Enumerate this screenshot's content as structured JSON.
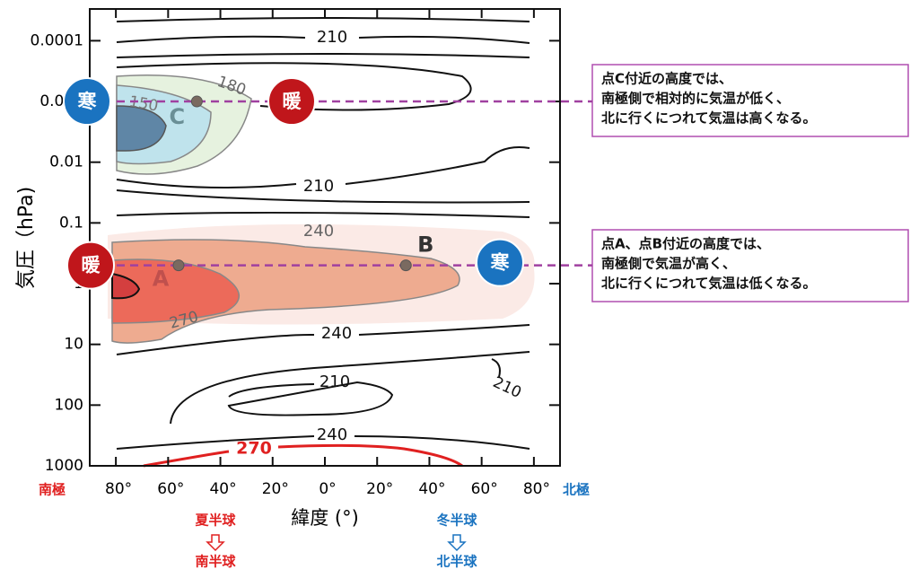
{
  "chart_data": {
    "type": "contour",
    "xlabel": "緯度 (°)",
    "ylabel": "気圧（hPa)",
    "xlim": [
      -90,
      90
    ],
    "ylim": [
      1000,
      3e-05
    ],
    "log_y": true,
    "xticks": [
      {
        "value": -80,
        "label": "80°"
      },
      {
        "value": -60,
        "label": "60°"
      },
      {
        "value": -40,
        "label": "40°"
      },
      {
        "value": -20,
        "label": "20°"
      },
      {
        "value": 0,
        "label": "0°"
      },
      {
        "value": 20,
        "label": "20°"
      },
      {
        "value": 40,
        "label": "40°"
      },
      {
        "value": 60,
        "label": "60°"
      },
      {
        "value": 80,
        "label": "80°"
      }
    ],
    "yticks": [
      0.0001,
      0.001,
      0.01,
      0.1,
      1,
      10,
      100,
      1000
    ],
    "x_end_labels": [
      {
        "label": "南極",
        "color": "#e02020"
      },
      {
        "label": "北極",
        "color": "#1a73c0"
      }
    ],
    "contour_labels": [
      210,
      180,
      150,
      210,
      240,
      270,
      240,
      210,
      240,
      270,
      210
    ],
    "points": [
      {
        "label": "A",
        "x": -56,
        "y": 0.5
      },
      {
        "label": "B",
        "x": 31,
        "y": 0.5
      },
      {
        "label": "C",
        "x": -49,
        "y": 0.001
      }
    ],
    "markers": [
      {
        "label": "寒",
        "color": "#1a73c0"
      },
      {
        "label": "暖",
        "color": "#c0161b"
      },
      {
        "label": "暖",
        "color": "#c0161b"
      },
      {
        "label": "寒",
        "color": "#1a73c0"
      }
    ],
    "hemispheres": [
      {
        "top": "夏半球",
        "bottom": "南半球",
        "color": "#e02020"
      },
      {
        "top": "冬半球",
        "bottom": "北半球",
        "color": "#1a73c0"
      }
    ],
    "notes": [
      [
        "点C付近の高度では、",
        "南極側で相対的に気温が低く、",
        "北に行くにつれて気温は高くなる。"
      ],
      [
        "点A、点B付近の高度では、",
        "南極側で気温が高く、",
        "北に行くにつれて気温は低くなる。"
      ]
    ]
  }
}
